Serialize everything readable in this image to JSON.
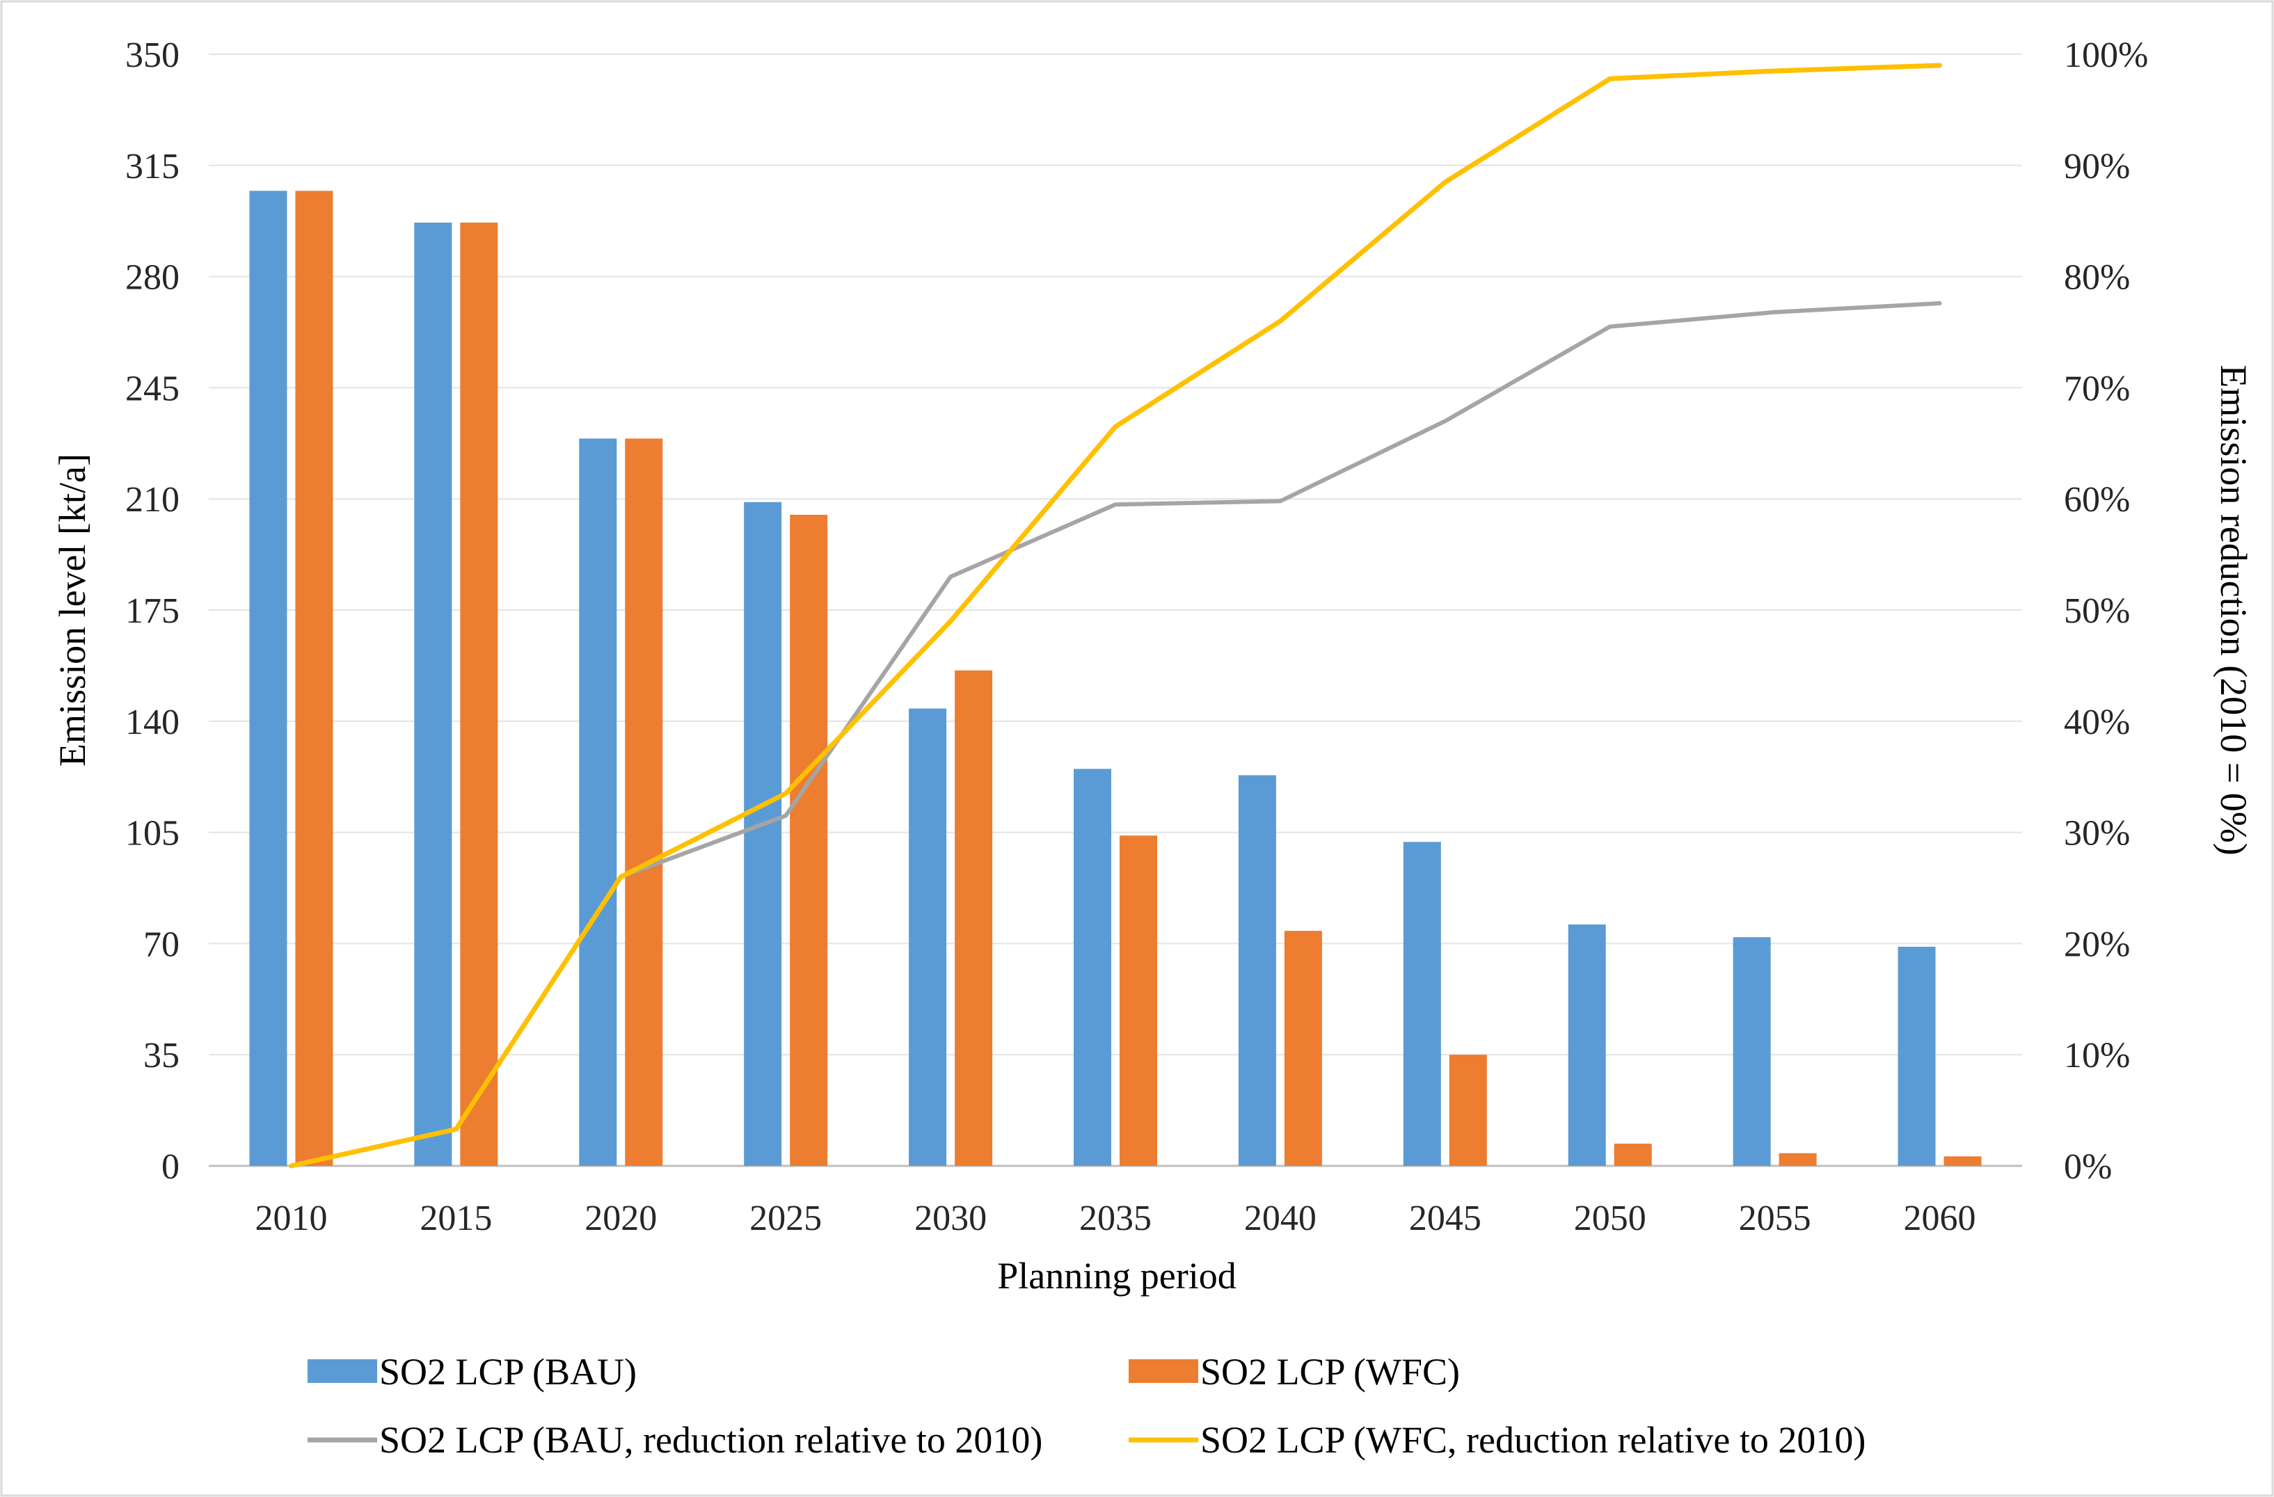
{
  "chart_data": {
    "type": "bar",
    "categories": [
      "2010",
      "2015",
      "2020",
      "2025",
      "2030",
      "2035",
      "2040",
      "2045",
      "2050",
      "2055",
      "2060"
    ],
    "series": [
      {
        "name": "SO2 LCP (BAU)",
        "kind": "bar",
        "axis": "left",
        "color": "#5B9BD5",
        "values": [
          307,
          297,
          229,
          209,
          144,
          125,
          123,
          102,
          76,
          72,
          69
        ]
      },
      {
        "name": "SO2 LCP (WFC)",
        "kind": "bar",
        "axis": "left",
        "color": "#ED7D31",
        "values": [
          307,
          297,
          229,
          205,
          156,
          104,
          74,
          35,
          7,
          4,
          3
        ]
      },
      {
        "name": "SO2 LCP (BAU, reduction relative to 2010)",
        "kind": "line",
        "axis": "right",
        "color": "#A5A5A5",
        "values": [
          0.0,
          0.033,
          0.26,
          0.315,
          0.53,
          0.595,
          0.598,
          0.67,
          0.755,
          0.768,
          0.776
        ]
      },
      {
        "name": "SO2 LCP (WFC, reduction relative to 2010)",
        "kind": "line",
        "axis": "right",
        "color": "#FFC000",
        "values": [
          0.0,
          0.033,
          0.26,
          0.335,
          0.49,
          0.665,
          0.76,
          0.885,
          0.978,
          0.985,
          0.99
        ]
      }
    ],
    "y_ticks": [
      "0",
      "35",
      "70",
      "105",
      "140",
      "175",
      "210",
      "245",
      "280",
      "315",
      "350"
    ],
    "y2_ticks": [
      "0%",
      "10%",
      "20%",
      "30%",
      "40%",
      "50%",
      "60%",
      "70%",
      "80%",
      "90%",
      "100%"
    ],
    "xlabel": "Planning period",
    "ylabel": "Emission level [kt/a]",
    "y2label": "Emission reduction (2010 = 0%)",
    "ylim": [
      0,
      350
    ],
    "y2lim": [
      0,
      1
    ],
    "grid": true,
    "legend_position": "bottom"
  }
}
